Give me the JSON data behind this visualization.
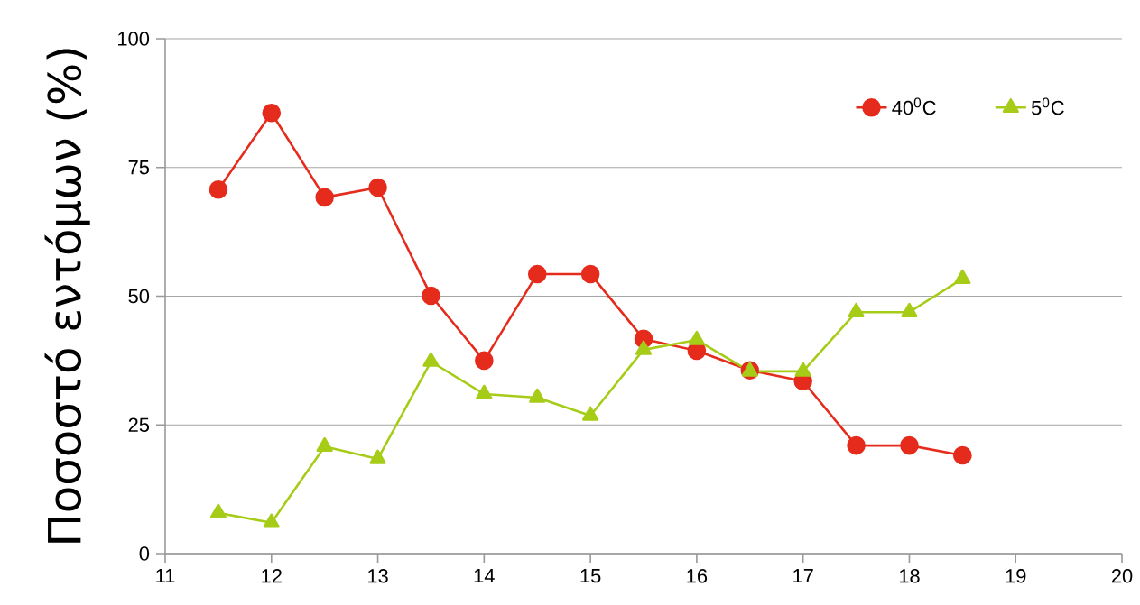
{
  "chart_data": {
    "type": "line",
    "ylabel": "Ποσοστό εντόμων (%)",
    "x": [
      11.5,
      12,
      12.5,
      13,
      13.5,
      14,
      14.5,
      15,
      15.5,
      16,
      16.5,
      17,
      17.5,
      18,
      18.5
    ],
    "series": [
      {
        "name": "40$^{0}$C",
        "color": "#e52b1c",
        "marker": "circle",
        "values": [
          70.7,
          85.6,
          69.2,
          71.1,
          50.1,
          37.5,
          54.3,
          54.3,
          41.7,
          39.4,
          35.6,
          33.5,
          21.0,
          21.0,
          19.1
        ]
      },
      {
        "name": "5$^{0}$C",
        "color": "#a6cc17",
        "marker": "triangle",
        "values": [
          7.9,
          6.0,
          20.8,
          18.4,
          37.3,
          31.0,
          30.3,
          26.8,
          39.6,
          41.5,
          35.4,
          35.4,
          46.9,
          46.9,
          53.4
        ]
      }
    ],
    "xlim": [
      11,
      20
    ],
    "xticks": [
      11,
      12,
      13,
      14,
      15,
      16,
      17,
      18,
      19,
      20
    ],
    "ylim": [
      0,
      100
    ],
    "yticks": [
      0,
      25,
      50,
      75,
      100
    ],
    "grid": "y",
    "legend": "top right",
    "line_style": "solid"
  }
}
